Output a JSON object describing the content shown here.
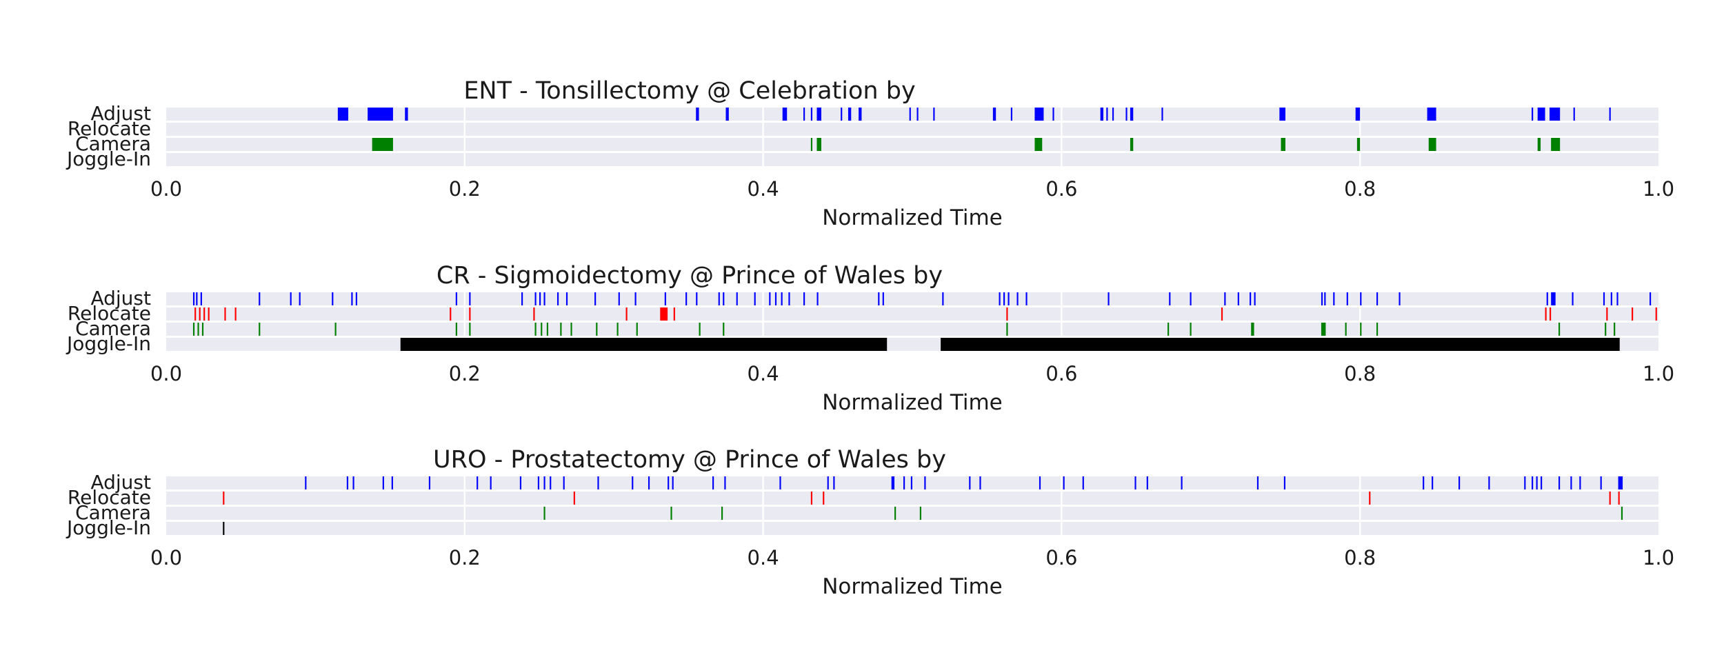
{
  "chart_data": [
    {
      "type": "timeline",
      "title": "ENT - Tonsillectomy @ Celebration by",
      "xlabel": "Normalized Time",
      "xlim": [
        0.0,
        1.0
      ],
      "xticks": [
        "0.0",
        "0.2",
        "0.4",
        "0.6",
        "0.8",
        "1.0"
      ],
      "rows": [
        "Adjust",
        "Relocate",
        "Camera",
        "Joggle-In"
      ],
      "colors": {
        "Adjust": "#0000ff",
        "Relocate": "#ff0000",
        "Camera": "#008000",
        "Joggle-In": "#000000"
      },
      "events": {
        "Adjust": [
          [
            0.115,
            0.122
          ],
          [
            0.135,
            0.152
          ],
          [
            0.16,
            0.162
          ],
          [
            0.355,
            0.357
          ],
          [
            0.375,
            0.377
          ],
          [
            0.413,
            0.416
          ],
          [
            0.427,
            0.428
          ],
          [
            0.432,
            0.433
          ],
          [
            0.436,
            0.439
          ],
          [
            0.452,
            0.453
          ],
          [
            0.457,
            0.459
          ],
          [
            0.464,
            0.466
          ],
          [
            0.498,
            0.499
          ],
          [
            0.503,
            0.504
          ],
          [
            0.514,
            0.515
          ],
          [
            0.554,
            0.556
          ],
          [
            0.566,
            0.567
          ],
          [
            0.582,
            0.588
          ],
          [
            0.594,
            0.595
          ],
          [
            0.626,
            0.628
          ],
          [
            0.63,
            0.631
          ],
          [
            0.634,
            0.635
          ],
          [
            0.643,
            0.644
          ],
          [
            0.646,
            0.648
          ],
          [
            0.667,
            0.668
          ],
          [
            0.746,
            0.75
          ],
          [
            0.797,
            0.8
          ],
          [
            0.845,
            0.851
          ],
          [
            0.915,
            0.916
          ],
          [
            0.919,
            0.924
          ],
          [
            0.927,
            0.934
          ],
          [
            0.943,
            0.944
          ],
          [
            0.967,
            0.968
          ]
        ],
        "Relocate": [],
        "Camera": [
          [
            0.138,
            0.152
          ],
          [
            0.432,
            0.433
          ],
          [
            0.436,
            0.439
          ],
          [
            0.582,
            0.587
          ],
          [
            0.646,
            0.648
          ],
          [
            0.747,
            0.75
          ],
          [
            0.798,
            0.8
          ],
          [
            0.846,
            0.851
          ],
          [
            0.919,
            0.921
          ],
          [
            0.928,
            0.934
          ]
        ],
        "Joggle-In": []
      }
    },
    {
      "type": "timeline",
      "title": "CR - Sigmoidectomy @ Prince of Wales by",
      "xlabel": "Normalized Time",
      "xlim": [
        0.0,
        1.0
      ],
      "xticks": [
        "0.0",
        "0.2",
        "0.4",
        "0.6",
        "0.8",
        "1.0"
      ],
      "rows": [
        "Adjust",
        "Relocate",
        "Camera",
        "Joggle-In"
      ],
      "colors": {
        "Adjust": "#0000ff",
        "Relocate": "#ff0000",
        "Camera": "#008000",
        "Joggle-In": "#000000"
      },
      "events": {
        "Adjust": [
          [
            0.018,
            0.019
          ],
          [
            0.02,
            0.021
          ],
          [
            0.023,
            0.024
          ],
          [
            0.062,
            0.063
          ],
          [
            0.083,
            0.084
          ],
          [
            0.089,
            0.09
          ],
          [
            0.111,
            0.112
          ],
          [
            0.124,
            0.125
          ],
          [
            0.127,
            0.128
          ],
          [
            0.194,
            0.195
          ],
          [
            0.203,
            0.204
          ],
          [
            0.238,
            0.239
          ],
          [
            0.247,
            0.248
          ],
          [
            0.25,
            0.251
          ],
          [
            0.253,
            0.254
          ],
          [
            0.262,
            0.263
          ],
          [
            0.268,
            0.269
          ],
          [
            0.287,
            0.288
          ],
          [
            0.303,
            0.304
          ],
          [
            0.314,
            0.315
          ],
          [
            0.334,
            0.335
          ],
          [
            0.348,
            0.349
          ],
          [
            0.355,
            0.356
          ],
          [
            0.37,
            0.371
          ],
          [
            0.373,
            0.374
          ],
          [
            0.382,
            0.383
          ],
          [
            0.394,
            0.395
          ],
          [
            0.404,
            0.405
          ],
          [
            0.408,
            0.409
          ],
          [
            0.412,
            0.413
          ],
          [
            0.417,
            0.418
          ],
          [
            0.427,
            0.428
          ],
          [
            0.436,
            0.437
          ],
          [
            0.477,
            0.478
          ],
          [
            0.48,
            0.481
          ],
          [
            0.52,
            0.521
          ],
          [
            0.558,
            0.559
          ],
          [
            0.561,
            0.562
          ],
          [
            0.564,
            0.565
          ],
          [
            0.57,
            0.571
          ],
          [
            0.576,
            0.577
          ],
          [
            0.631,
            0.632
          ],
          [
            0.672,
            0.673
          ],
          [
            0.686,
            0.687
          ],
          [
            0.709,
            0.71
          ],
          [
            0.718,
            0.719
          ],
          [
            0.726,
            0.727
          ],
          [
            0.729,
            0.73
          ],
          [
            0.774,
            0.775
          ],
          [
            0.776,
            0.777
          ],
          [
            0.782,
            0.783
          ],
          [
            0.791,
            0.792
          ],
          [
            0.8,
            0.801
          ],
          [
            0.811,
            0.812
          ],
          [
            0.826,
            0.827
          ],
          [
            0.925,
            0.926
          ],
          [
            0.928,
            0.931
          ],
          [
            0.942,
            0.943
          ],
          [
            0.963,
            0.964
          ],
          [
            0.968,
            0.969
          ],
          [
            0.972,
            0.973
          ],
          [
            0.994,
            0.995
          ]
        ],
        "Relocate": [
          [
            0.019,
            0.02
          ],
          [
            0.022,
            0.023
          ],
          [
            0.025,
            0.026
          ],
          [
            0.028,
            0.029
          ],
          [
            0.039,
            0.04
          ],
          [
            0.046,
            0.047
          ],
          [
            0.19,
            0.191
          ],
          [
            0.203,
            0.204
          ],
          [
            0.246,
            0.247
          ],
          [
            0.308,
            0.309
          ],
          [
            0.331,
            0.336
          ],
          [
            0.34,
            0.341
          ],
          [
            0.563,
            0.564
          ],
          [
            0.707,
            0.708
          ],
          [
            0.924,
            0.925
          ],
          [
            0.927,
            0.928
          ],
          [
            0.965,
            0.966
          ],
          [
            0.982,
            0.983
          ],
          [
            0.998,
            0.999
          ]
        ],
        "Camera": [
          [
            0.018,
            0.019
          ],
          [
            0.021,
            0.022
          ],
          [
            0.024,
            0.025
          ],
          [
            0.062,
            0.063
          ],
          [
            0.113,
            0.114
          ],
          [
            0.194,
            0.195
          ],
          [
            0.203,
            0.204
          ],
          [
            0.247,
            0.248
          ],
          [
            0.251,
            0.252
          ],
          [
            0.255,
            0.256
          ],
          [
            0.264,
            0.265
          ],
          [
            0.271,
            0.272
          ],
          [
            0.288,
            0.289
          ],
          [
            0.302,
            0.303
          ],
          [
            0.315,
            0.316
          ],
          [
            0.357,
            0.358
          ],
          [
            0.373,
            0.374
          ],
          [
            0.563,
            0.564
          ],
          [
            0.671,
            0.672
          ],
          [
            0.686,
            0.687
          ],
          [
            0.727,
            0.729
          ],
          [
            0.774,
            0.777
          ],
          [
            0.79,
            0.791
          ],
          [
            0.8,
            0.801
          ],
          [
            0.811,
            0.812
          ],
          [
            0.933,
            0.934
          ],
          [
            0.964,
            0.965
          ],
          [
            0.97,
            0.971
          ]
        ],
        "Joggle-In": [
          [
            0.157,
            0.483
          ],
          [
            0.519,
            0.974
          ]
        ]
      }
    },
    {
      "type": "timeline",
      "title": "URO - Prostatectomy @ Prince of Wales by",
      "xlabel": "Normalized Time",
      "xlim": [
        0.0,
        1.0
      ],
      "xticks": [
        "0.0",
        "0.2",
        "0.4",
        "0.6",
        "0.8",
        "1.0"
      ],
      "rows": [
        "Adjust",
        "Relocate",
        "Camera",
        "Joggle-In"
      ],
      "colors": {
        "Adjust": "#0000ff",
        "Relocate": "#ff0000",
        "Camera": "#008000",
        "Joggle-In": "#000000"
      },
      "events": {
        "Adjust": [
          [
            0.093,
            0.094
          ],
          [
            0.121,
            0.122
          ],
          [
            0.125,
            0.126
          ],
          [
            0.145,
            0.146
          ],
          [
            0.151,
            0.152
          ],
          [
            0.176,
            0.177
          ],
          [
            0.208,
            0.209
          ],
          [
            0.217,
            0.218
          ],
          [
            0.237,
            0.238
          ],
          [
            0.249,
            0.25
          ],
          [
            0.253,
            0.254
          ],
          [
            0.257,
            0.258
          ],
          [
            0.266,
            0.267
          ],
          [
            0.289,
            0.29
          ],
          [
            0.312,
            0.313
          ],
          [
            0.323,
            0.324
          ],
          [
            0.336,
            0.337
          ],
          [
            0.339,
            0.34
          ],
          [
            0.366,
            0.367
          ],
          [
            0.374,
            0.375
          ],
          [
            0.411,
            0.412
          ],
          [
            0.443,
            0.444
          ],
          [
            0.447,
            0.448
          ],
          [
            0.486,
            0.488
          ],
          [
            0.494,
            0.495
          ],
          [
            0.499,
            0.5
          ],
          [
            0.508,
            0.509
          ],
          [
            0.538,
            0.539
          ],
          [
            0.545,
            0.546
          ],
          [
            0.585,
            0.586
          ],
          [
            0.601,
            0.602
          ],
          [
            0.614,
            0.615
          ],
          [
            0.649,
            0.65
          ],
          [
            0.657,
            0.658
          ],
          [
            0.68,
            0.681
          ],
          [
            0.731,
            0.732
          ],
          [
            0.749,
            0.75
          ],
          [
            0.842,
            0.843
          ],
          [
            0.848,
            0.849
          ],
          [
            0.866,
            0.867
          ],
          [
            0.886,
            0.887
          ],
          [
            0.91,
            0.911
          ],
          [
            0.915,
            0.916
          ],
          [
            0.918,
            0.919
          ],
          [
            0.921,
            0.922
          ],
          [
            0.933,
            0.934
          ],
          [
            0.941,
            0.942
          ],
          [
            0.947,
            0.948
          ],
          [
            0.961,
            0.962
          ],
          [
            0.973,
            0.976
          ]
        ],
        "Relocate": [
          [
            0.038,
            0.039
          ],
          [
            0.273,
            0.274
          ],
          [
            0.432,
            0.433
          ],
          [
            0.44,
            0.441
          ],
          [
            0.806,
            0.807
          ],
          [
            0.967,
            0.968
          ],
          [
            0.973,
            0.974
          ]
        ],
        "Camera": [
          [
            0.253,
            0.254
          ],
          [
            0.338,
            0.339
          ],
          [
            0.372,
            0.373
          ],
          [
            0.488,
            0.489
          ],
          [
            0.505,
            0.506
          ],
          [
            0.975,
            0.976
          ]
        ],
        "Joggle-In": [
          [
            0.038,
            0.039
          ]
        ]
      }
    }
  ]
}
